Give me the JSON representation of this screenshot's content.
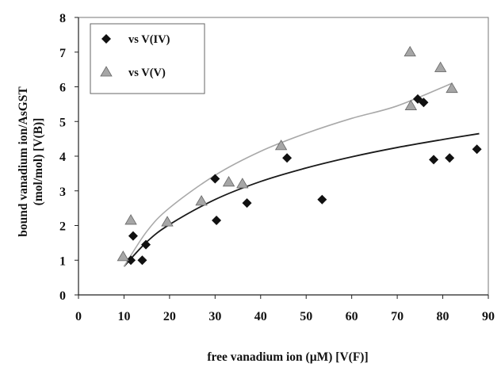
{
  "chart_data": {
    "type": "scatter",
    "title": "",
    "xlabel": "free vanadium ion (µM) [V(F)]",
    "ylabel_lines": [
      "bound vanadium ion/AsGST",
      "(mol/mol) [V(B)]"
    ],
    "xlim": [
      0,
      90
    ],
    "ylim": [
      0,
      8
    ],
    "x_ticks": [
      0,
      10,
      20,
      30,
      40,
      50,
      60,
      70,
      80,
      90
    ],
    "y_ticks": [
      0,
      1,
      2,
      3,
      4,
      5,
      6,
      7,
      8
    ],
    "grid": false,
    "legend_position": "top-left",
    "series": [
      {
        "name": "vs V(IV)",
        "marker": "diamond",
        "marker_color": "#111111",
        "fit_color": "#1a1a1a",
        "points": [
          [
            11.5,
            1.0
          ],
          [
            12.0,
            1.7
          ],
          [
            14.0,
            1.0
          ],
          [
            14.8,
            1.45
          ],
          [
            30.0,
            3.35
          ],
          [
            30.3,
            2.15
          ],
          [
            37.0,
            2.65
          ],
          [
            45.8,
            3.95
          ],
          [
            53.5,
            2.75
          ],
          [
            74.5,
            5.65
          ],
          [
            75.8,
            5.55
          ],
          [
            78.0,
            3.9
          ],
          [
            81.5,
            3.95
          ],
          [
            87.5,
            4.2
          ]
        ],
        "fit_curve": [
          [
            10,
            0.82
          ],
          [
            15,
            1.53
          ],
          [
            20,
            2.03
          ],
          [
            30,
            2.75
          ],
          [
            40,
            3.27
          ],
          [
            50,
            3.66
          ],
          [
            60,
            3.98
          ],
          [
            70,
            4.25
          ],
          [
            80,
            4.48
          ],
          [
            88,
            4.65
          ]
        ]
      },
      {
        "name": "vs V(V)",
        "marker": "triangle",
        "marker_color": "#a6a6a6",
        "fit_color": "#a9a9a9",
        "points": [
          [
            9.8,
            1.1
          ],
          [
            11.5,
            2.15
          ],
          [
            19.5,
            2.1
          ],
          [
            27.0,
            2.7
          ],
          [
            33.0,
            3.25
          ],
          [
            36.0,
            3.2
          ],
          [
            44.5,
            4.3
          ],
          [
            72.8,
            7.0
          ],
          [
            73.0,
            5.45
          ],
          [
            79.5,
            6.55
          ],
          [
            82.0,
            5.95
          ]
        ],
        "fit_curve": [
          [
            10,
            0.82
          ],
          [
            15,
            1.83
          ],
          [
            20,
            2.51
          ],
          [
            30,
            3.45
          ],
          [
            40,
            4.14
          ],
          [
            50,
            4.66
          ],
          [
            60,
            5.09
          ],
          [
            70,
            5.45
          ],
          [
            82,
            6.1
          ]
        ]
      }
    ]
  }
}
